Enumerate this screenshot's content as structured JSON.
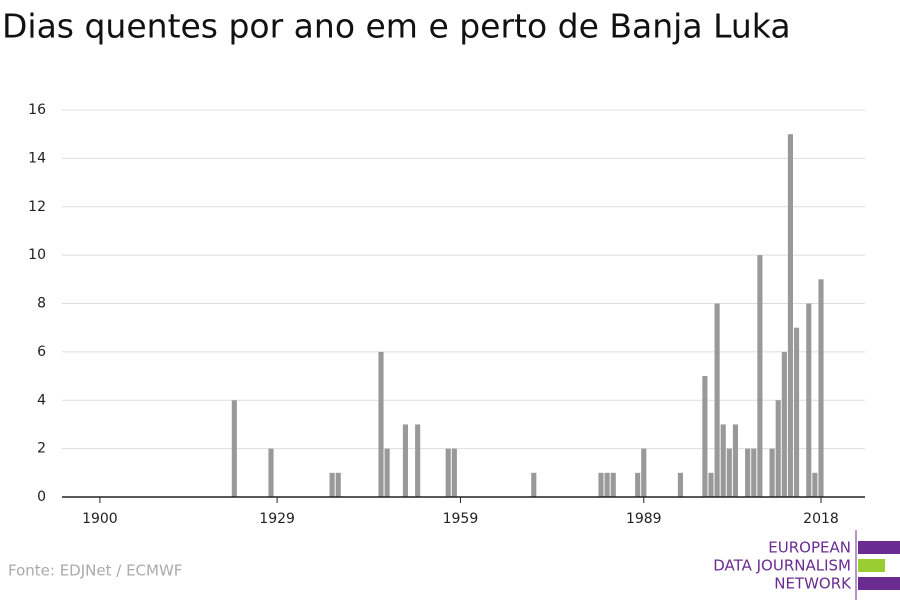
{
  "chart_data": {
    "type": "bar",
    "title": "Dias quentes por ano em e perto de Banja Luka",
    "source": "Fonte: EDJNet / ECMWF",
    "logo": [
      "EUROPEAN",
      "DATA JOURNALISM",
      "NETWORK"
    ],
    "color": "#999999",
    "x": [
      1922,
      1928,
      1938,
      1939,
      1946,
      1947,
      1950,
      1952,
      1957,
      1958,
      1971,
      1982,
      1983,
      1984,
      1988,
      1989,
      1995,
      1999,
      2000,
      2001,
      2002,
      2003,
      2004,
      2006,
      2007,
      2008,
      2010,
      2011,
      2012,
      2013,
      2014,
      2016,
      2017,
      2018
    ],
    "values": [
      4,
      2,
      1,
      1,
      6,
      2,
      3,
      3,
      2,
      2,
      1,
      1,
      1,
      1,
      1,
      2,
      1,
      5,
      1,
      8,
      3,
      2,
      3,
      2,
      2,
      10,
      2,
      4,
      6,
      15,
      7,
      8,
      1,
      9
    ],
    "xlim": [
      1893.8,
      2025.2
    ],
    "xticks": [
      1900,
      1929,
      1959,
      1989,
      2018
    ],
    "ylim": [
      0,
      16
    ],
    "yticks": [
      0,
      2,
      4,
      6,
      8,
      10,
      12,
      14,
      16
    ],
    "grid": true
  }
}
